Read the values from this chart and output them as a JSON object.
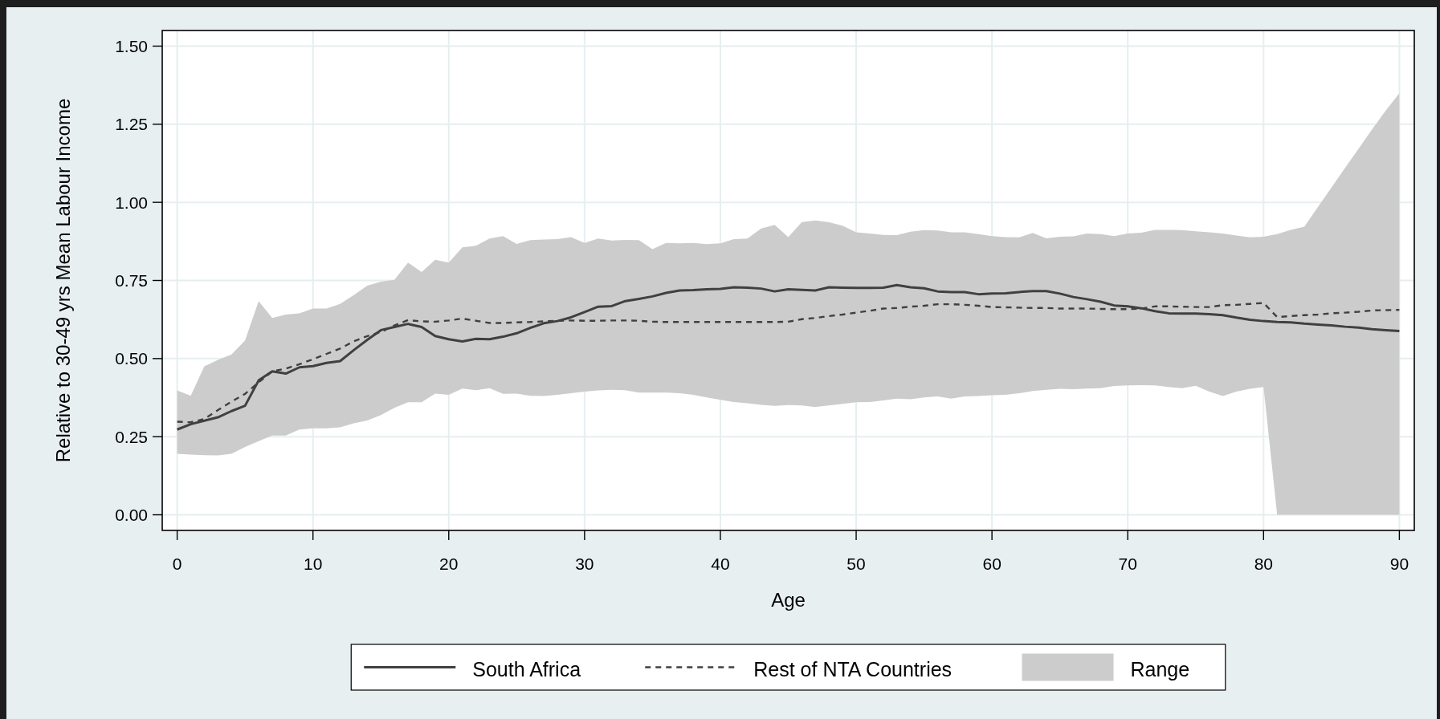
{
  "chart_data": {
    "type": "line",
    "xlabel": "Age",
    "ylabel": "Relative to 30-49 yrs Mean Labour Income",
    "x": [
      0,
      1,
      2,
      3,
      4,
      5,
      6,
      7,
      8,
      9,
      10,
      11,
      12,
      13,
      14,
      15,
      16,
      17,
      18,
      19,
      20,
      21,
      22,
      23,
      24,
      25,
      26,
      27,
      28,
      29,
      30,
      31,
      32,
      33,
      34,
      35,
      36,
      37,
      38,
      39,
      40,
      41,
      42,
      43,
      44,
      45,
      46,
      47,
      48,
      49,
      50,
      51,
      52,
      53,
      54,
      55,
      56,
      57,
      58,
      59,
      60,
      61,
      62,
      63,
      64,
      65,
      66,
      67,
      68,
      69,
      70,
      71,
      72,
      73,
      74,
      75,
      76,
      77,
      78,
      79,
      80,
      81,
      82,
      83,
      84,
      85,
      86,
      87,
      88,
      89,
      90
    ],
    "xlim": [
      -1.1,
      91.1
    ],
    "xticks": [
      0,
      10,
      20,
      30,
      40,
      50,
      60,
      70,
      80,
      90
    ],
    "ylim": [
      -0.05,
      1.55
    ],
    "yticks": [
      {
        "value": 0,
        "label": "0.00"
      },
      {
        "value": 0.25,
        "label": "0.25"
      },
      {
        "value": 0.5,
        "label": "0.50"
      },
      {
        "value": 0.75,
        "label": "0.75"
      },
      {
        "value": 1,
        "label": "1.00"
      },
      {
        "value": 1.25,
        "label": "1.25"
      },
      {
        "value": 1.5,
        "label": "1.50"
      }
    ],
    "grid": true,
    "legend": "bottom",
    "series": [
      {
        "name": "South Africa",
        "color": "#404040",
        "line_style": "solid",
        "values": [
          0.273,
          0.29,
          0.301,
          0.312,
          0.332,
          0.349,
          0.43,
          0.459,
          0.452,
          0.472,
          0.476,
          0.486,
          0.492,
          0.527,
          0.56,
          0.591,
          0.601,
          0.611,
          0.601,
          0.572,
          0.562,
          0.555,
          0.563,
          0.562,
          0.57,
          0.581,
          0.598,
          0.613,
          0.62,
          0.632,
          0.649,
          0.666,
          0.668,
          0.684,
          0.691,
          0.699,
          0.71,
          0.718,
          0.719,
          0.722,
          0.723,
          0.728,
          0.727,
          0.724,
          0.715,
          0.722,
          0.72,
          0.718,
          0.728,
          0.727,
          0.726,
          0.726,
          0.727,
          0.735,
          0.728,
          0.725,
          0.715,
          0.713,
          0.713,
          0.706,
          0.708,
          0.709,
          0.713,
          0.716,
          0.716,
          0.708,
          0.697,
          0.69,
          0.682,
          0.67,
          0.667,
          0.661,
          0.652,
          0.645,
          0.644,
          0.644,
          0.642,
          0.639,
          0.631,
          0.624,
          0.62,
          0.617,
          0.616,
          0.612,
          0.609,
          0.606,
          0.602,
          0.599,
          0.594,
          0.591,
          0.588
        ]
      },
      {
        "name": "Rest of NTA Countries",
        "color": "#404040",
        "line_style": "dashed",
        "values": [
          0.298,
          0.296,
          0.307,
          0.335,
          0.362,
          0.387,
          0.424,
          0.459,
          0.468,
          0.482,
          0.498,
          0.515,
          0.532,
          0.555,
          0.572,
          0.585,
          0.606,
          0.623,
          0.619,
          0.618,
          0.622,
          0.628,
          0.621,
          0.614,
          0.614,
          0.616,
          0.617,
          0.619,
          0.621,
          0.622,
          0.621,
          0.621,
          0.622,
          0.622,
          0.621,
          0.618,
          0.617,
          0.617,
          0.617,
          0.617,
          0.617,
          0.617,
          0.617,
          0.617,
          0.617,
          0.618,
          0.626,
          0.63,
          0.636,
          0.641,
          0.647,
          0.653,
          0.66,
          0.662,
          0.666,
          0.669,
          0.674,
          0.674,
          0.672,
          0.669,
          0.665,
          0.664,
          0.663,
          0.662,
          0.662,
          0.66,
          0.66,
          0.66,
          0.659,
          0.658,
          0.658,
          0.66,
          0.667,
          0.667,
          0.666,
          0.665,
          0.665,
          0.671,
          0.672,
          0.675,
          0.678,
          0.633,
          0.636,
          0.639,
          0.641,
          0.645,
          0.647,
          0.65,
          0.654,
          0.655,
          0.656
        ]
      },
      {
        "name": "Range",
        "type": "area",
        "color": "#cccccc",
        "values": [
          null,
          null,
          null,
          null,
          null,
          null,
          null,
          null,
          null,
          null,
          null,
          null,
          null,
          null,
          null,
          null,
          null,
          null,
          null,
          null,
          null,
          null,
          null,
          null,
          null,
          null,
          null,
          null,
          null,
          null,
          null,
          null,
          null,
          null,
          null,
          null,
          null,
          null,
          null,
          null,
          null,
          null,
          null,
          null,
          null,
          null,
          null,
          null,
          null,
          null,
          null,
          null,
          null,
          null,
          null,
          null,
          null,
          null,
          null,
          null,
          null,
          null,
          null,
          null,
          null,
          null,
          null,
          null,
          null,
          null,
          null,
          null,
          null,
          null,
          null,
          null,
          null,
          null,
          null,
          null,
          null,
          null,
          null,
          null,
          null,
          null,
          null,
          null,
          null,
          null,
          null
        ],
        "lower": [
          0.195,
          0.193,
          0.191,
          0.19,
          0.195,
          0.217,
          0.236,
          0.254,
          0.254,
          0.273,
          0.277,
          0.277,
          0.28,
          0.293,
          0.302,
          0.319,
          0.342,
          0.36,
          0.36,
          0.388,
          0.384,
          0.404,
          0.399,
          0.405,
          0.387,
          0.388,
          0.381,
          0.38,
          0.384,
          0.389,
          0.394,
          0.398,
          0.4,
          0.399,
          0.391,
          0.391,
          0.391,
          0.389,
          0.384,
          0.376,
          0.368,
          0.361,
          0.357,
          0.352,
          0.349,
          0.351,
          0.35,
          0.345,
          0.35,
          0.355,
          0.36,
          0.361,
          0.366,
          0.372,
          0.37,
          0.376,
          0.379,
          0.372,
          0.379,
          0.38,
          0.383,
          0.384,
          0.389,
          0.396,
          0.4,
          0.403,
          0.402,
          0.404,
          0.405,
          0.412,
          0.414,
          0.415,
          0.414,
          0.409,
          0.405,
          0.413,
          0.394,
          0.38,
          0.394,
          0.403,
          0.409,
          0,
          0,
          0,
          0,
          0,
          0,
          0,
          0,
          0,
          0
        ],
        "upper": [
          0.398,
          0.381,
          0.475,
          0.496,
          0.513,
          0.558,
          0.684,
          0.63,
          0.641,
          0.645,
          0.66,
          0.66,
          0.675,
          0.703,
          0.733,
          0.746,
          0.752,
          0.807,
          0.777,
          0.816,
          0.807,
          0.856,
          0.861,
          0.884,
          0.892,
          0.867,
          0.879,
          0.881,
          0.882,
          0.889,
          0.87,
          0.884,
          0.878,
          0.88,
          0.879,
          0.85,
          0.87,
          0.869,
          0.87,
          0.866,
          0.869,
          0.882,
          0.884,
          0.916,
          0.928,
          0.889,
          0.937,
          0.942,
          0.936,
          0.925,
          0.904,
          0.9,
          0.896,
          0.895,
          0.906,
          0.911,
          0.91,
          0.904,
          0.904,
          0.898,
          0.892,
          0.889,
          0.888,
          0.902,
          0.885,
          0.89,
          0.891,
          0.9,
          0.898,
          0.892,
          0.9,
          0.903,
          0.912,
          0.912,
          0.911,
          0.907,
          0.904,
          0.9,
          0.894,
          0.888,
          0.89,
          0.898,
          0.912,
          0.922,
          0.985,
          1.047,
          1.11,
          1.172,
          1.234,
          1.294,
          1.349
        ]
      }
    ]
  }
}
